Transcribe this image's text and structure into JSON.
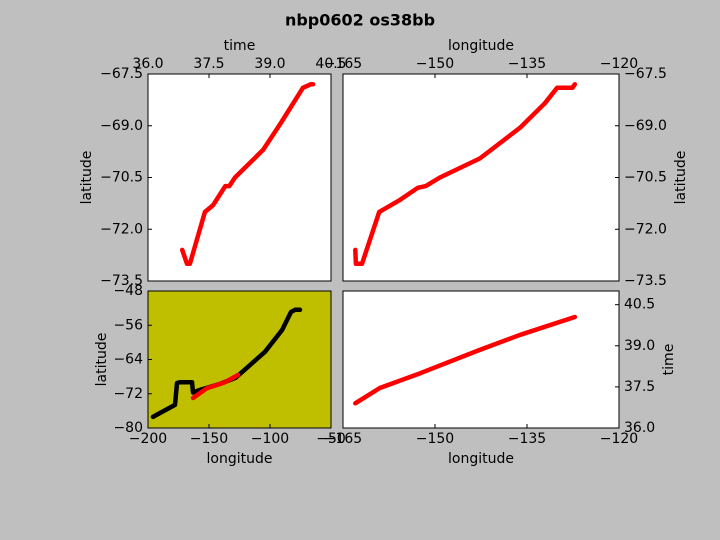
{
  "title": "nbp0602 os38bb",
  "chart_data": [
    {
      "type": "line",
      "xlabel": "time",
      "ylabel": "latitude",
      "xaxis": "top",
      "yaxis": "left",
      "background": "#ffffff",
      "xlim": [
        36,
        40.5
      ],
      "ylim": [
        -73.5,
        -67.5
      ],
      "xticks": [
        {
          "value": 36,
          "label": "36.0"
        },
        {
          "value": 37.5,
          "label": "37.5"
        },
        {
          "value": 39,
          "label": "39.0"
        },
        40.5
      ],
      "yticks": [
        {
          "value": -67.5,
          "label": "−67.5"
        },
        {
          "value": -69,
          "label": "−69.0"
        },
        {
          "value": -70.5,
          "label": "−70.5"
        },
        {
          "value": -72,
          "label": "−72.0"
        },
        {
          "value": -73.5,
          "label": "−73.5"
        }
      ],
      "series": [
        {
          "color": "#ff0000",
          "x": [
            36.84,
            36.96,
            37.03,
            37.4,
            37.6,
            37.9,
            38.0,
            38.14,
            38.83,
            39.25,
            39.57,
            39.81,
            40.0,
            40.06
          ],
          "values": [
            -72.6,
            -73.0,
            -73.0,
            -71.5,
            -71.3,
            -70.75,
            -70.75,
            -70.5,
            -69.7,
            -68.95,
            -68.35,
            -67.9,
            -67.8,
            -67.8
          ]
        }
      ]
    },
    {
      "type": "line",
      "xlabel": "longitude",
      "ylabel": "latitude",
      "xaxis": "top",
      "yaxis": "right",
      "background": "#ffffff",
      "xlim": [
        -165,
        -120
      ],
      "ylim": [
        -73.5,
        -67.5
      ],
      "xticks": [
        {
          "value": -165,
          "label": "−165"
        },
        {
          "value": -150,
          "label": "−150"
        },
        {
          "value": -135,
          "label": "−135"
        },
        {
          "value": -120,
          "label": "−120"
        }
      ],
      "yticks": [
        {
          "value": -67.5,
          "label": "−67.5"
        },
        {
          "value": -69,
          "label": "−69.0"
        },
        {
          "value": -70.5,
          "label": "−70.5"
        },
        {
          "value": -72,
          "label": "−72.0"
        },
        {
          "value": -73.5,
          "label": "−73.5"
        }
      ],
      "series": [
        {
          "color": "#ff0000",
          "x": [
            -163.0,
            -162.9,
            -161.9,
            -159.1,
            -155.7,
            -152.8,
            -151.5,
            -149.2,
            -142.7,
            -136.1,
            -132.1,
            -130.1,
            -127.6,
            -127.2
          ],
          "values": [
            -72.6,
            -73.0,
            -73.0,
            -71.5,
            -71.15,
            -70.8,
            -70.75,
            -70.5,
            -69.95,
            -69.05,
            -68.35,
            -67.9,
            -67.9,
            -67.8
          ]
        }
      ]
    },
    {
      "type": "line",
      "xlabel": "longitude",
      "ylabel": "latitude",
      "xaxis": "bottom",
      "yaxis": "left",
      "background": "#bfbf00",
      "xlim": [
        -200,
        -50
      ],
      "ylim": [
        -80,
        -48
      ],
      "xticks": [
        {
          "value": -200,
          "label": "−200"
        },
        {
          "value": -150,
          "label": "−150"
        },
        {
          "value": -100,
          "label": "−100"
        },
        {
          "value": -50,
          "label": "−50"
        }
      ],
      "yticks": [
        {
          "value": -80,
          "label": "−80"
        },
        {
          "value": -72,
          "label": "−72"
        },
        {
          "value": -64,
          "label": "−64"
        },
        {
          "value": -56,
          "label": "−56"
        },
        {
          "value": -48,
          "label": "−48"
        }
      ],
      "series": [
        {
          "color": "#000000",
          "x": [
            -195.9,
            -190.2,
            -177.9,
            -176.2,
            -173.8,
            -163.9,
            -163.1,
            -157.4,
            -141.0,
            -128.4,
            -116.4,
            -104.1,
            -90.1,
            -82.8,
            -79.5,
            -75.4
          ],
          "values": [
            -77.4,
            -76.5,
            -74.6,
            -69.5,
            -69.3,
            -69.3,
            -71.7,
            -71.1,
            -69.7,
            -68.3,
            -65.3,
            -62.2,
            -57.1,
            -52.9,
            -52.4,
            -52.4
          ]
        },
        {
          "color": "#ff0000",
          "x": [
            -163.1,
            -151.6,
            -136.9,
            -126.2
          ],
          "values": [
            -73.0,
            -70.7,
            -69.3,
            -67.6
          ]
        }
      ]
    },
    {
      "type": "line",
      "xlabel": "longitude",
      "ylabel": "time",
      "xaxis": "bottom",
      "yaxis": "right",
      "background": "#ffffff",
      "xlim": [
        -165,
        -120
      ],
      "ylim": [
        36,
        41
      ],
      "xticks": [
        {
          "value": -165,
          "label": "−165"
        },
        {
          "value": -150,
          "label": "−150"
        },
        {
          "value": -135,
          "label": "−135"
        },
        {
          "value": -120,
          "label": "−120"
        }
      ],
      "yticks": [
        {
          "value": 36,
          "label": "36.0"
        },
        {
          "value": 37.5,
          "label": "37.5"
        },
        {
          "value": 39,
          "label": "39.0"
        },
        40.5
      ],
      "series": [
        {
          "color": "#ff0000",
          "x": [
            -163.0,
            -159.0,
            -152.4,
            -142.7,
            -136.1,
            -127.2
          ],
          "values": [
            36.9,
            37.46,
            38.0,
            38.85,
            39.4,
            40.05
          ]
        }
      ]
    }
  ]
}
